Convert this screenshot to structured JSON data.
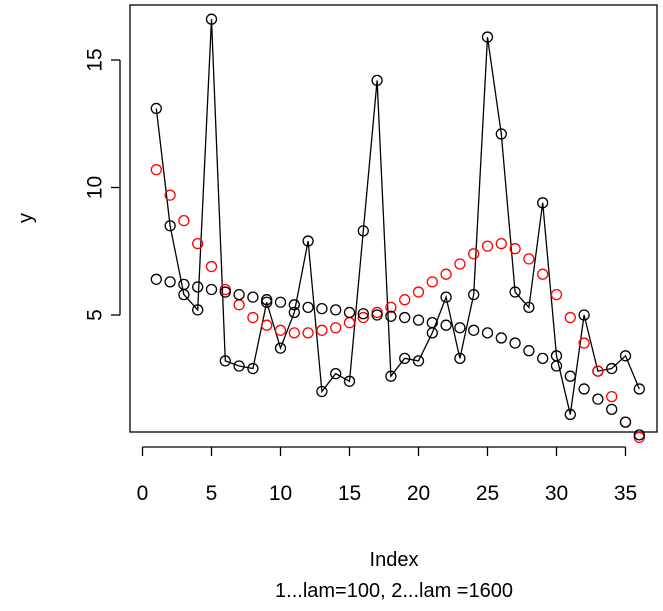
{
  "chart_data": {
    "type": "scatter",
    "xlabel": "Index",
    "ylabel": "y",
    "subtitle": "1...lam=100, 2...lam =1600",
    "xlim": [
      0,
      36.5
    ],
    "ylim": [
      0,
      17
    ],
    "xticks": [
      0,
      5,
      10,
      15,
      20,
      25,
      30,
      35
    ],
    "yticks": [
      5,
      10,
      15
    ],
    "grid": false,
    "legend": "none",
    "series": [
      {
        "style": "points-and-line",
        "color": "#000000",
        "x": [
          1,
          2,
          3,
          4,
          5,
          6,
          7,
          8,
          9,
          10,
          11,
          12,
          13,
          14,
          15,
          16,
          17,
          18,
          19,
          20,
          21,
          22,
          23,
          24,
          25,
          26,
          27,
          28,
          29,
          30,
          31,
          32,
          33,
          34,
          35,
          36
        ],
        "y": [
          13.1,
          8.5,
          5.8,
          5.2,
          16.6,
          3.2,
          3.0,
          2.9,
          5.5,
          3.7,
          5.1,
          7.9,
          2.0,
          2.7,
          2.4,
          8.3,
          14.2,
          2.6,
          3.3,
          3.2,
          4.3,
          5.7,
          3.3,
          5.8,
          15.9,
          12.1,
          5.9,
          5.3,
          9.4,
          3.4,
          1.1,
          5.0,
          2.8,
          2.9,
          3.4,
          2.1
        ]
      },
      {
        "style": "points",
        "color": "#ff0000",
        "x": [
          1,
          2,
          3,
          4,
          5,
          6,
          7,
          8,
          9,
          10,
          11,
          12,
          13,
          14,
          15,
          16,
          17,
          18,
          19,
          20,
          21,
          22,
          23,
          24,
          25,
          26,
          27,
          28,
          29,
          30,
          31,
          32,
          33,
          34,
          35,
          36
        ],
        "y": [
          10.7,
          9.7,
          8.7,
          7.8,
          6.9,
          6.0,
          5.4,
          4.9,
          4.6,
          4.4,
          4.3,
          4.3,
          4.4,
          4.5,
          4.7,
          4.9,
          5.1,
          5.3,
          5.6,
          5.9,
          6.3,
          6.6,
          7.0,
          7.4,
          7.7,
          7.8,
          7.6,
          7.2,
          6.6,
          5.8,
          4.9,
          3.9,
          2.8,
          1.8,
          0.8,
          0.2
        ]
      },
      {
        "style": "points",
        "color": "#000000",
        "x": [
          1,
          2,
          3,
          4,
          5,
          6,
          7,
          8,
          9,
          10,
          11,
          12,
          13,
          14,
          15,
          16,
          17,
          18,
          19,
          20,
          21,
          22,
          23,
          24,
          25,
          26,
          27,
          28,
          29,
          30,
          31,
          32,
          33,
          34,
          35,
          36
        ],
        "y": [
          6.4,
          6.3,
          6.2,
          6.1,
          6.0,
          5.9,
          5.8,
          5.7,
          5.6,
          5.5,
          5.4,
          5.3,
          5.25,
          5.2,
          5.1,
          5.05,
          5.0,
          4.95,
          4.9,
          4.8,
          4.7,
          4.6,
          4.5,
          4.4,
          4.3,
          4.1,
          3.9,
          3.6,
          3.3,
          3.0,
          2.6,
          2.1,
          1.7,
          1.3,
          0.8,
          0.3
        ]
      }
    ]
  }
}
